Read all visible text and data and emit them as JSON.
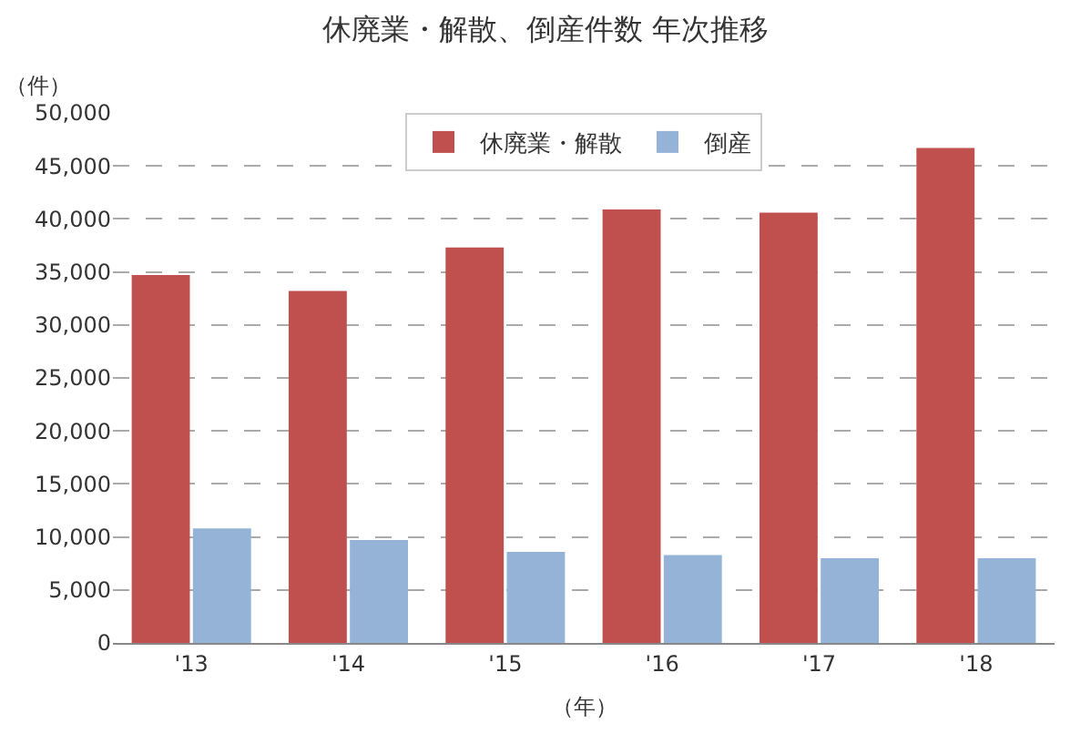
{
  "chart_data": {
    "type": "bar",
    "title": "休廃業・解散、倒産件数 年次推移",
    "xlabel": "（年）",
    "ylabel": "（件）",
    "categories": [
      "'13",
      "'14",
      "'15",
      "'16",
      "'17",
      "'18"
    ],
    "series": [
      {
        "name": "休廃業・解散",
        "color": "#c0504d",
        "values": [
          34700,
          33200,
          37300,
          40900,
          40600,
          46700
        ]
      },
      {
        "name": "倒産",
        "color": "#95b3d7",
        "values": [
          10800,
          9700,
          8600,
          8300,
          8000,
          8000
        ]
      }
    ],
    "ylim": [
      0,
      50000
    ],
    "yticks": [
      {
        "value": 0,
        "label": "0"
      },
      {
        "value": 5000,
        "label": "5,000"
      },
      {
        "value": 10000,
        "label": "10,000"
      },
      {
        "value": 15000,
        "label": "15,000"
      },
      {
        "value": 20000,
        "label": "20,000"
      },
      {
        "value": 25000,
        "label": "25,000"
      },
      {
        "value": 30000,
        "label": "30,000"
      },
      {
        "value": 35000,
        "label": "35,000"
      },
      {
        "value": 40000,
        "label": "40,000"
      },
      {
        "value": 45000,
        "label": "45,000"
      },
      {
        "value": 50000,
        "label": "50,000"
      }
    ],
    "grid": "y",
    "legend": "top"
  }
}
